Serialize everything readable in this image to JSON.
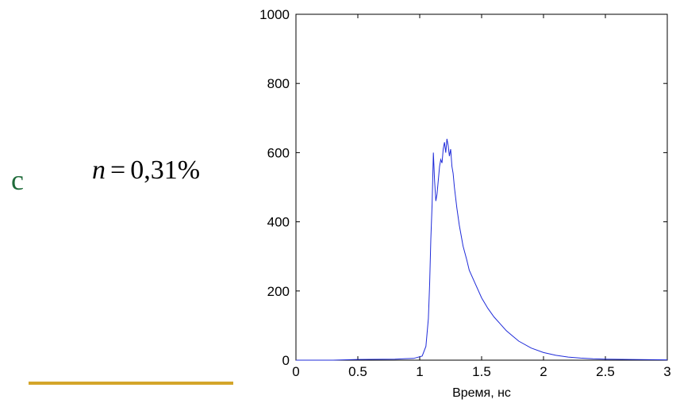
{
  "slide": {
    "bullet_glyph": "c",
    "formula": {
      "variable": "n",
      "equals": "=",
      "value": "0,31%"
    },
    "accent_color": "#d4a52a",
    "bullet_color": "#1f6b3a"
  },
  "chart_data": {
    "type": "line",
    "title": "",
    "xlabel": "Время, нс",
    "ylabel": "",
    "xlim": [
      0,
      3
    ],
    "ylim": [
      0,
      1000
    ],
    "xticks": [
      0,
      0.5,
      1,
      1.5,
      2,
      2.5,
      3
    ],
    "xtick_labels": [
      "0",
      "0.5",
      "1",
      "1.5",
      "2",
      "2.5",
      "3"
    ],
    "yticks": [
      0,
      200,
      400,
      600,
      800,
      1000
    ],
    "ytick_labels": [
      "0",
      "200",
      "400",
      "600",
      "800",
      "1000"
    ],
    "grid": false,
    "line_color": "#1f2bd9",
    "series": [
      {
        "x": [
          0,
          0.3,
          0.5,
          0.8,
          0.95,
          1.02,
          1.05,
          1.07,
          1.08,
          1.09,
          1.1,
          1.11,
          1.12,
          1.13,
          1.14,
          1.15,
          1.16,
          1.17,
          1.18,
          1.19,
          1.2,
          1.21,
          1.22,
          1.23,
          1.24,
          1.25,
          1.26,
          1.27,
          1.28,
          1.3,
          1.32,
          1.35,
          1.38,
          1.4,
          1.45,
          1.5,
          1.55,
          1.6,
          1.65,
          1.7,
          1.75,
          1.8,
          1.9,
          2.0,
          2.1,
          2.2,
          2.3,
          2.4,
          2.5,
          2.7,
          3.0
        ],
        "y": [
          0,
          0,
          2,
          3,
          5,
          12,
          40,
          120,
          220,
          350,
          450,
          600,
          520,
          460,
          480,
          520,
          560,
          580,
          570,
          610,
          630,
          600,
          640,
          620,
          590,
          610,
          560,
          540,
          500,
          440,
          390,
          330,
          290,
          260,
          220,
          180,
          150,
          125,
          105,
          85,
          70,
          55,
          35,
          22,
          14,
          9,
          6,
          4,
          3,
          2,
          1
        ]
      }
    ]
  }
}
